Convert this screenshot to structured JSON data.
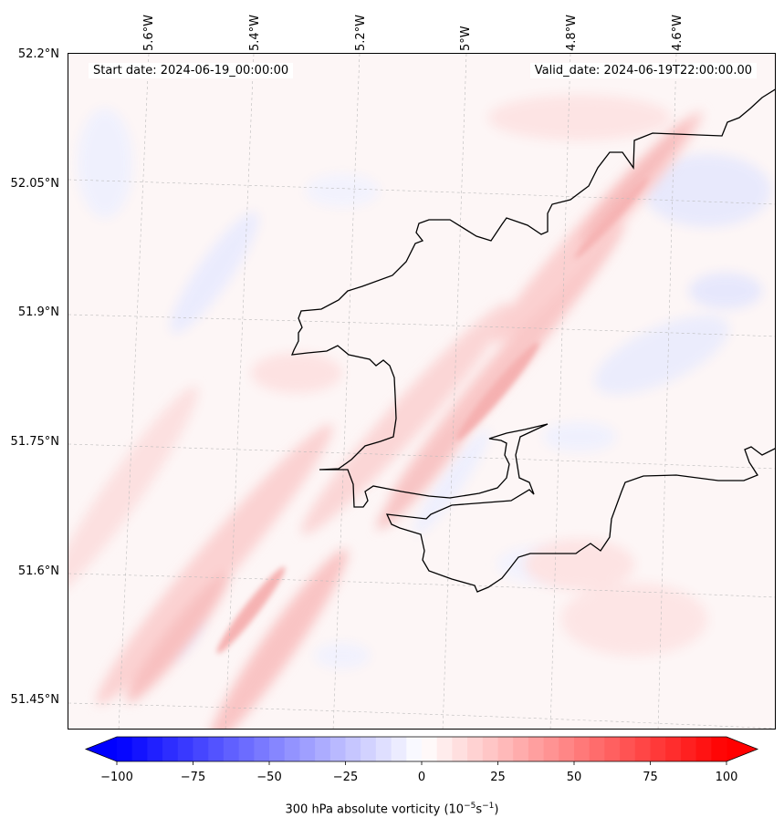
{
  "header": {
    "start_date": "Start date: 2024-06-19_00:00:00",
    "valid_date": "Valid_date: 2024-06-19T22:00:00.00"
  },
  "map": {
    "lat_labels": [
      "52.2°N",
      "52.05°N",
      "51.9°N",
      "51.75°N",
      "51.6°N",
      "51.45°N"
    ],
    "lon_labels": [
      "5.6°W",
      "5.4°W",
      "5.2°W",
      "5°W",
      "4.8°W",
      "4.6°W"
    ],
    "field": "300 hPa absolute vorticity",
    "gridlines": true
  },
  "colorbar": {
    "ticks": [
      "−100",
      "−75",
      "−50",
      "−25",
      "0",
      "25",
      "50",
      "75",
      "100"
    ],
    "title_prefix": "300 hPa absolute vorticity (10",
    "title_exp1": "−5",
    "title_mid": "s",
    "title_exp2": "−1",
    "title_suffix": ")",
    "range": [
      -100,
      100
    ],
    "colormap": "bwr",
    "color_min": "#0000ff",
    "color_mid": "#ffffff",
    "color_max": "#ff0000"
  }
}
